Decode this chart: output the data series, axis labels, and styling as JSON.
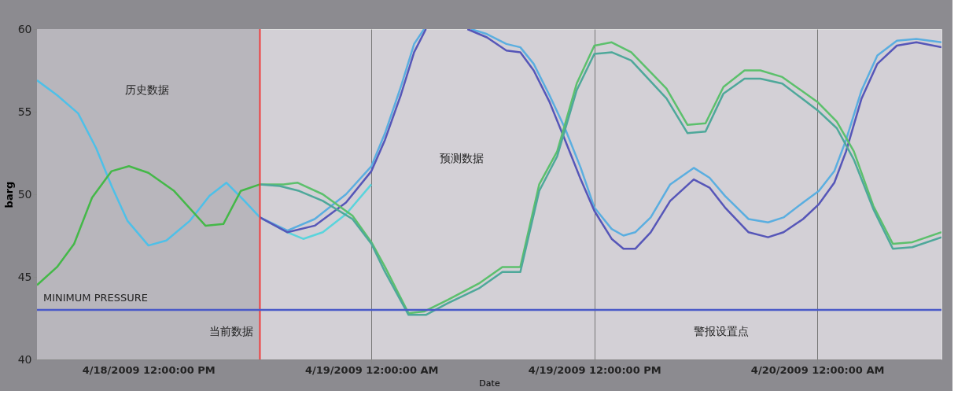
{
  "chart_data": {
    "type": "line",
    "xlabel": "Date",
    "ylabel": "barg",
    "xlim": [
      "2009-04-18T06:00",
      "2009-04-20T06:41"
    ],
    "xticks": [
      {
        "value": "2009-04-18T12:00",
        "label": "4/18/2009 12:00:00 PM"
      },
      {
        "value": "2009-04-19T00:00",
        "label": "4/19/2009 12:00:00 AM"
      },
      {
        "value": "2009-04-19T12:00",
        "label": "4/19/2009 12:00:00 PM"
      },
      {
        "value": "2009-04-20T00:00",
        "label": "4/20/2009 12:00:00 AM"
      }
    ],
    "ylim": [
      40,
      60
    ],
    "yticks": [
      40,
      45,
      50,
      55,
      60
    ],
    "grid": "x",
    "line_style": "solid",
    "marker": "none",
    "series": [
      {
        "color": "#4ec0e8",
        "x": [
          "2009-04-18T06:00",
          "2009-04-18T07:05",
          "2009-04-18T08:13",
          "2009-04-18T09:11",
          "2009-04-18T10:01",
          "2009-04-18T10:52",
          "2009-04-18T12:00",
          "2009-04-18T12:58",
          "2009-04-18T14:14",
          "2009-04-18T15:17",
          "2009-04-18T16:12",
          "2009-04-18T17:10",
          "2009-04-18T18:00"
        ],
        "values": [
          56.9,
          56.0,
          54.9,
          52.8,
          50.5,
          48.4,
          46.9,
          47.2,
          48.4,
          49.9,
          50.7,
          49.6,
          48.6
        ]
      },
      {
        "color": "#44b848",
        "x": [
          "2009-04-18T06:00",
          "2009-04-18T07:05",
          "2009-04-18T08:00",
          "2009-04-18T08:58",
          "2009-04-18T10:01",
          "2009-04-18T10:57",
          "2009-04-18T12:00",
          "2009-04-18T13:23",
          "2009-04-18T15:04",
          "2009-04-18T16:02",
          "2009-04-18T16:58",
          "2009-04-18T18:00"
        ],
        "values": [
          44.5,
          45.6,
          47.0,
          49.8,
          51.4,
          51.7,
          51.3,
          50.2,
          48.1,
          48.2,
          50.2,
          50.6
        ]
      },
      {
        "color": "#5ad4dc",
        "x": [
          "2009-04-18T18:00",
          "2009-04-18T19:29",
          "2009-04-18T20:20",
          "2009-04-18T21:23",
          "2009-04-18T22:38",
          "2009-04-19T00:00"
        ],
        "values": [
          48.6,
          47.7,
          47.3,
          47.7,
          48.8,
          50.6
        ]
      },
      {
        "color": "#5aaee0",
        "x": [
          "2009-04-18T18:00",
          "2009-04-18T19:29",
          "2009-04-18T20:57",
          "2009-04-18T22:38",
          "2009-04-19T00:00",
          "2009-04-19T00:44",
          "2009-04-19T01:35",
          "2009-04-19T02:18",
          "2009-04-19T02:50",
          "2009-04-19T04:06",
          "2009-04-19T05:22",
          "2009-04-19T06:13",
          "2009-04-19T07:16",
          "2009-04-19T08:01",
          "2009-04-19T08:44",
          "2009-04-19T09:35",
          "2009-04-19T10:25",
          "2009-04-19T11:16",
          "2009-04-19T12:00",
          "2009-04-19T12:56",
          "2009-04-19T13:34",
          "2009-04-19T14:12",
          "2009-04-19T15:02",
          "2009-04-19T16:05",
          "2009-04-19T17:21",
          "2009-04-19T18:12",
          "2009-04-19T19:02",
          "2009-04-19T20:18",
          "2009-04-19T21:21",
          "2009-04-19T22:11",
          "2009-04-19T23:14",
          "2009-04-20T00:05",
          "2009-04-20T00:55",
          "2009-04-20T01:33",
          "2009-04-20T02:23",
          "2009-04-20T03:14",
          "2009-04-20T04:17",
          "2009-04-20T05:20",
          "2009-04-20T06:41"
        ],
        "values": [
          48.6,
          47.8,
          48.5,
          50.0,
          51.7,
          53.7,
          56.5,
          59.1,
          60,
          null,
          60,
          59.7,
          59.1,
          58.9,
          57.9,
          56.0,
          54.0,
          51.6,
          49.2,
          47.9,
          47.5,
          47.7,
          48.6,
          50.6,
          51.6,
          51.0,
          49.9,
          48.5,
          48.3,
          48.6,
          49.5,
          50.2,
          51.4,
          53.3,
          56.3,
          58.4,
          59.3,
          59.4,
          59.2
        ]
      },
      {
        "color": "#5656b8",
        "x": [
          "2009-04-18T18:00",
          "2009-04-18T19:29",
          "2009-04-18T20:57",
          "2009-04-18T22:38",
          "2009-04-19T00:00",
          "2009-04-19T00:44",
          "2009-04-19T01:35",
          "2009-04-19T02:18",
          "2009-04-19T02:56",
          "2009-04-19T04:06",
          "2009-04-19T05:10",
          "2009-04-19T06:13",
          "2009-04-19T07:16",
          "2009-04-19T08:01",
          "2009-04-19T08:44",
          "2009-04-19T09:35",
          "2009-04-19T10:25",
          "2009-04-19T11:16",
          "2009-04-19T12:00",
          "2009-04-19T12:56",
          "2009-04-19T13:34",
          "2009-04-19T14:12",
          "2009-04-19T15:02",
          "2009-04-19T16:05",
          "2009-04-19T17:21",
          "2009-04-19T18:12",
          "2009-04-19T19:02",
          "2009-04-19T20:18",
          "2009-04-19T21:21",
          "2009-04-19T22:11",
          "2009-04-19T23:14",
          "2009-04-20T00:05",
          "2009-04-20T00:55",
          "2009-04-20T01:33",
          "2009-04-20T02:23",
          "2009-04-20T03:14",
          "2009-04-20T04:17",
          "2009-04-20T05:20",
          "2009-04-20T06:41"
        ],
        "values": [
          48.6,
          47.7,
          48.1,
          49.5,
          51.4,
          53.3,
          56.0,
          58.6,
          60,
          null,
          60,
          59.5,
          58.7,
          58.6,
          57.5,
          55.6,
          53.3,
          50.9,
          49.0,
          47.3,
          46.7,
          46.7,
          47.7,
          49.6,
          50.9,
          50.4,
          49.2,
          47.7,
          47.4,
          47.7,
          48.5,
          49.4,
          50.7,
          52.6,
          55.8,
          57.9,
          59.0,
          59.2,
          58.9
        ]
      },
      {
        "color": "#5cc06c",
        "x": [
          "2009-04-18T18:00",
          "2009-04-18T19:16",
          "2009-04-18T20:02",
          "2009-04-18T21:23",
          "2009-04-18T22:59",
          "2009-04-19T00:00",
          "2009-04-19T00:44",
          "2009-04-19T02:00",
          "2009-04-19T02:50",
          "2009-04-19T04:06",
          "2009-04-19T05:47",
          "2009-04-19T07:03",
          "2009-04-19T08:01",
          "2009-04-19T09:02",
          "2009-04-19T10:00",
          "2009-04-19T11:03",
          "2009-04-19T12:00",
          "2009-04-19T12:56",
          "2009-04-19T13:59",
          "2009-04-19T15:53",
          "2009-04-19T17:01",
          "2009-04-19T17:59",
          "2009-04-19T18:57",
          "2009-04-19T20:05",
          "2009-04-19T20:56",
          "2009-04-19T22:07",
          "2009-04-20T00:00",
          "2009-04-20T01:03",
          "2009-04-20T01:58",
          "2009-04-20T03:01",
          "2009-04-20T04:04",
          "2009-04-20T05:07",
          "2009-04-20T06:41"
        ],
        "values": [
          50.6,
          50.6,
          50.7,
          50.0,
          48.7,
          47.1,
          45.6,
          42.8,
          42.9,
          43.6,
          44.6,
          45.6,
          45.6,
          50.6,
          52.6,
          56.7,
          59.0,
          59.2,
          58.6,
          56.4,
          54.2,
          54.3,
          56.5,
          57.5,
          57.5,
          57.1,
          55.6,
          54.4,
          52.6,
          49.3,
          47.0,
          47.1,
          47.7
        ]
      },
      {
        "color": "#4ea89a",
        "x": [
          "2009-04-18T18:00",
          "2009-04-18T19:04",
          "2009-04-18T20:07",
          "2009-04-18T21:23",
          "2009-04-18T22:59",
          "2009-04-19T00:00",
          "2009-04-19T00:44",
          "2009-04-19T02:00",
          "2009-04-19T02:56",
          "2009-04-19T04:06",
          "2009-04-19T05:47",
          "2009-04-19T07:03",
          "2009-04-19T08:01",
          "2009-04-19T09:02",
          "2009-04-19T10:00",
          "2009-04-19T11:03",
          "2009-04-19T12:00",
          "2009-04-19T12:56",
          "2009-04-19T13:59",
          "2009-04-19T15:53",
          "2009-04-19T17:01",
          "2009-04-19T17:59",
          "2009-04-19T18:57",
          "2009-04-19T20:05",
          "2009-04-19T20:56",
          "2009-04-19T22:07",
          "2009-04-20T00:00",
          "2009-04-20T01:03",
          "2009-04-20T01:58",
          "2009-04-20T03:01",
          "2009-04-20T04:04",
          "2009-04-20T05:07",
          "2009-04-20T06:41"
        ],
        "values": [
          50.6,
          50.5,
          50.2,
          49.6,
          48.5,
          47.0,
          45.3,
          42.7,
          42.7,
          43.4,
          44.3,
          45.3,
          45.3,
          50.2,
          52.3,
          56.3,
          58.5,
          58.6,
          58.1,
          55.8,
          53.7,
          53.8,
          56.1,
          57.0,
          57.0,
          56.7,
          55.1,
          54.0,
          52.1,
          49.1,
          46.7,
          46.8,
          47.4
        ]
      }
    ],
    "bands": [
      {
        "axis": "x",
        "from": "2009-04-18T06:00",
        "to": "2009-04-18T18:00",
        "label": "历史数据",
        "color": "#b8b6bc"
      }
    ],
    "ref_lines": [
      {
        "axis": "x",
        "value": "2009-04-18T18:00",
        "label": "当前数据",
        "color": "#f03c3c"
      },
      {
        "axis": "y",
        "value": 43,
        "label": "MINIMUM PRESSURE",
        "color": "#4a5ac8"
      }
    ],
    "annotations": [
      "预测数据",
      "警报设置点"
    ]
  }
}
